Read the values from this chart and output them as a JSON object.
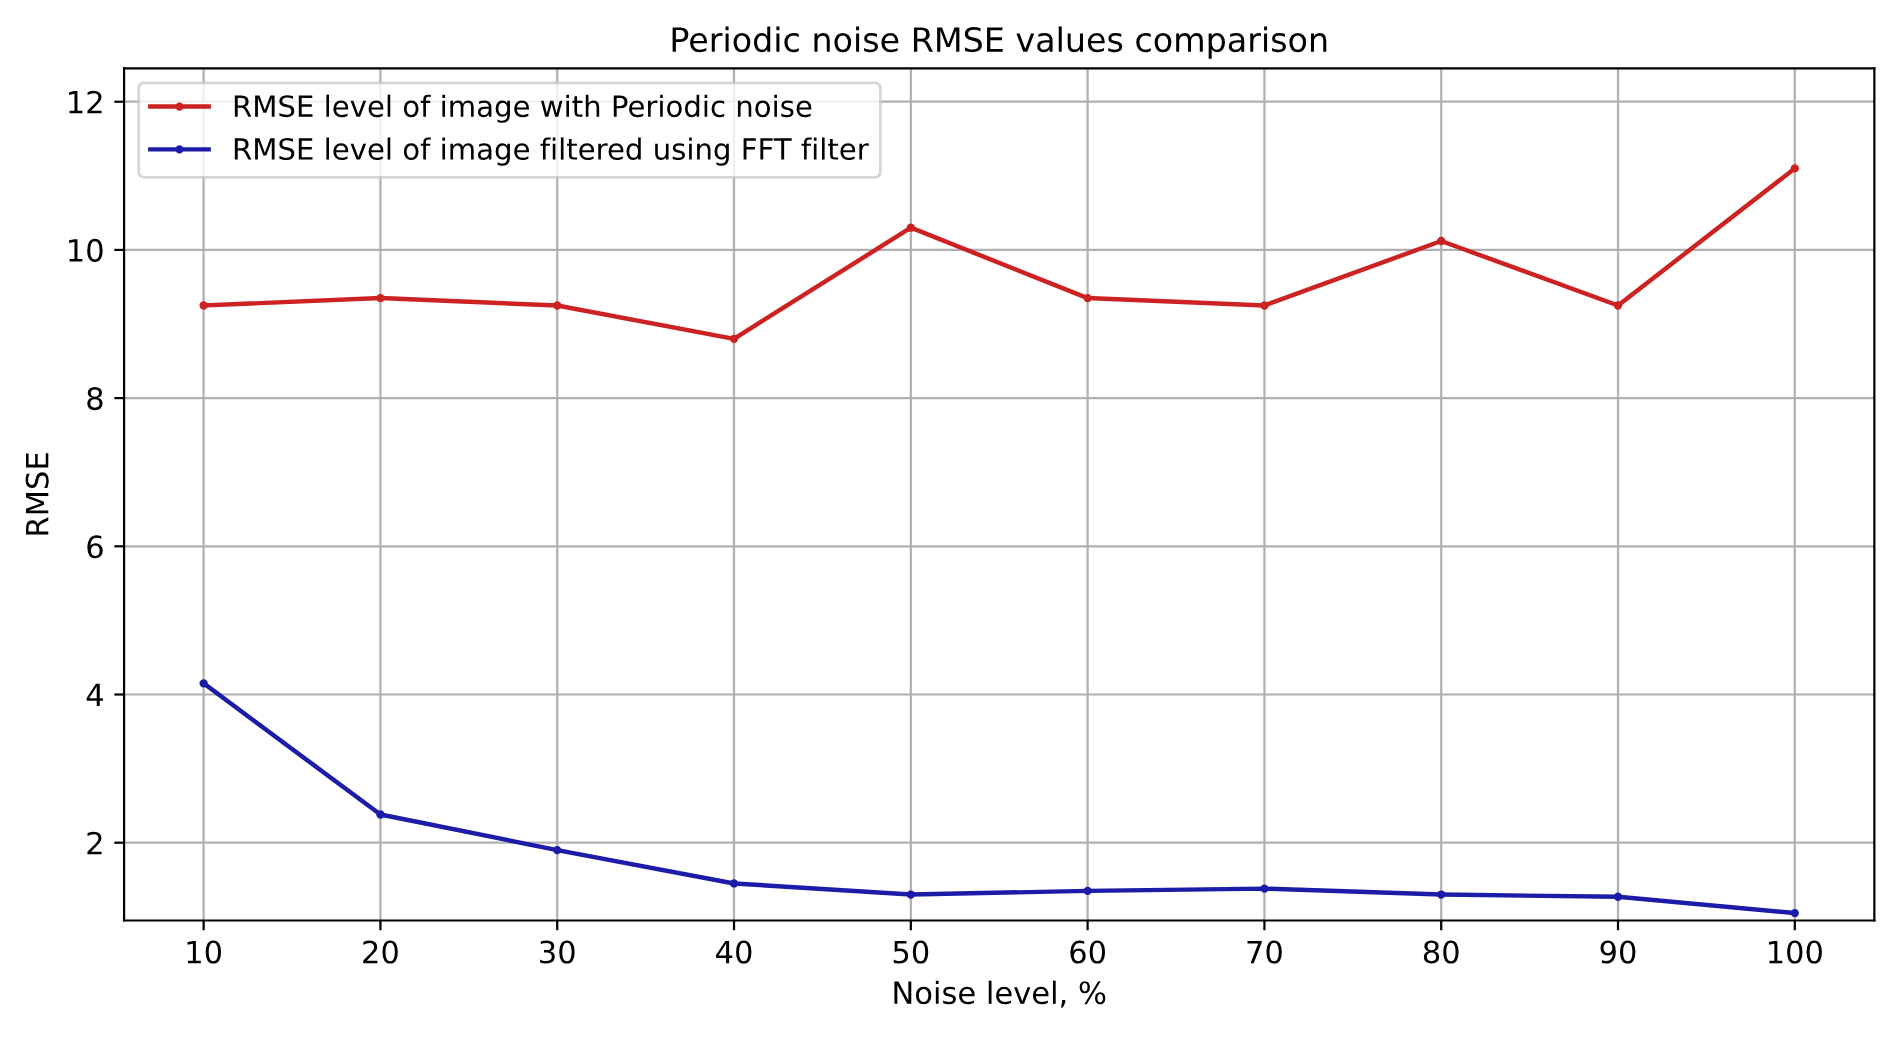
{
  "chart_data": {
    "type": "line",
    "title": "Periodic noise RMSE values comparison",
    "xlabel": "Noise level, %",
    "ylabel": "RMSE",
    "x": [
      10,
      20,
      30,
      40,
      50,
      60,
      70,
      80,
      90,
      100
    ],
    "series": [
      {
        "name": "RMSE level of image with Periodic noise",
        "color": "#cc2222",
        "values": [
          9.25,
          9.35,
          9.25,
          8.8,
          10.3,
          9.35,
          9.25,
          10.12,
          9.25,
          11.1
        ]
      },
      {
        "name": "RMSE level of image filtered using FFT filter",
        "color": "#1c1ca8",
        "values": [
          4.15,
          2.38,
          1.9,
          1.45,
          1.3,
          1.35,
          1.38,
          1.3,
          1.27,
          1.05
        ]
      }
    ],
    "xlim": [
      5.5,
      104.5
    ],
    "ylim": [
      0.95,
      12.45
    ],
    "xticks": [
      10,
      20,
      30,
      40,
      50,
      60,
      70,
      80,
      90,
      100
    ],
    "yticks": [
      2,
      4,
      6,
      8,
      10,
      12
    ],
    "grid": true,
    "legend": "top left",
    "marker": "circle",
    "line_style": "solid"
  }
}
